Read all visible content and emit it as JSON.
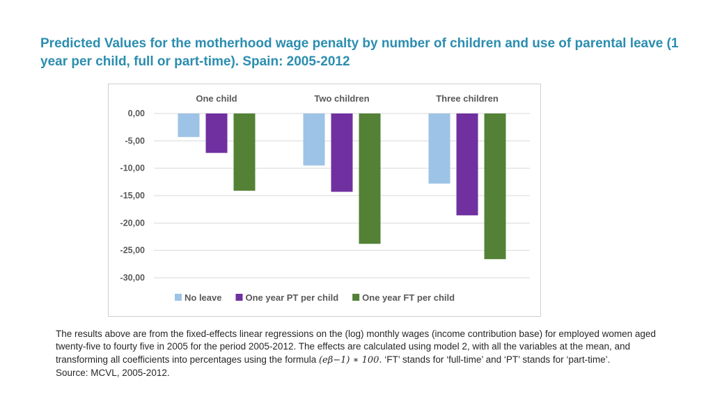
{
  "title": "Predicted Values for the motherhood wage penalty by number of children and use of parental leave (1 year per child, full or part-time). Spain: 2005-2012",
  "chart_data": {
    "type": "bar",
    "categories": [
      "One child",
      "Two children",
      "Three children"
    ],
    "series": [
      {
        "name": "No leave",
        "color": "#9dc3e6",
        "values": [
          -4.3,
          -9.5,
          -12.8
        ]
      },
      {
        "name": "One year PT per child",
        "color": "#7030a0",
        "values": [
          -7.2,
          -14.3,
          -18.6
        ]
      },
      {
        "name": "One year FT per child",
        "color": "#538135",
        "values": [
          -14.1,
          -23.8,
          -26.6
        ]
      }
    ],
    "ylim": [
      -30,
      0
    ],
    "yticks": [
      0,
      -5,
      -10,
      -15,
      -20,
      -25,
      -30
    ],
    "ytick_labels": [
      "0,00",
      "-5,00",
      "-10,00",
      "-15,00",
      "-20,00",
      "-25,00",
      "-30,00"
    ],
    "grid": true,
    "legend_position": "bottom",
    "category_labels_position": "top",
    "xlabel": "",
    "ylabel": ""
  },
  "notes": {
    "line1": "The results above are from the fixed-effects linear regressions on the (log) monthly wages (income contribution base) for employed women aged twenty-five to fourty five in 2005  for the period 2005-2012.  The effects are calculated using model 2, with all the variables at the mean, and transforming all coefficients into percentages using the formula",
    "formula": "(eβ−1) ∗ 100.",
    "line2": "‘FT’ stands for ‘full-time’ and ‘PT’ stands for ‘part-time’.",
    "source": "Source: MCVL, 2005-2012."
  }
}
